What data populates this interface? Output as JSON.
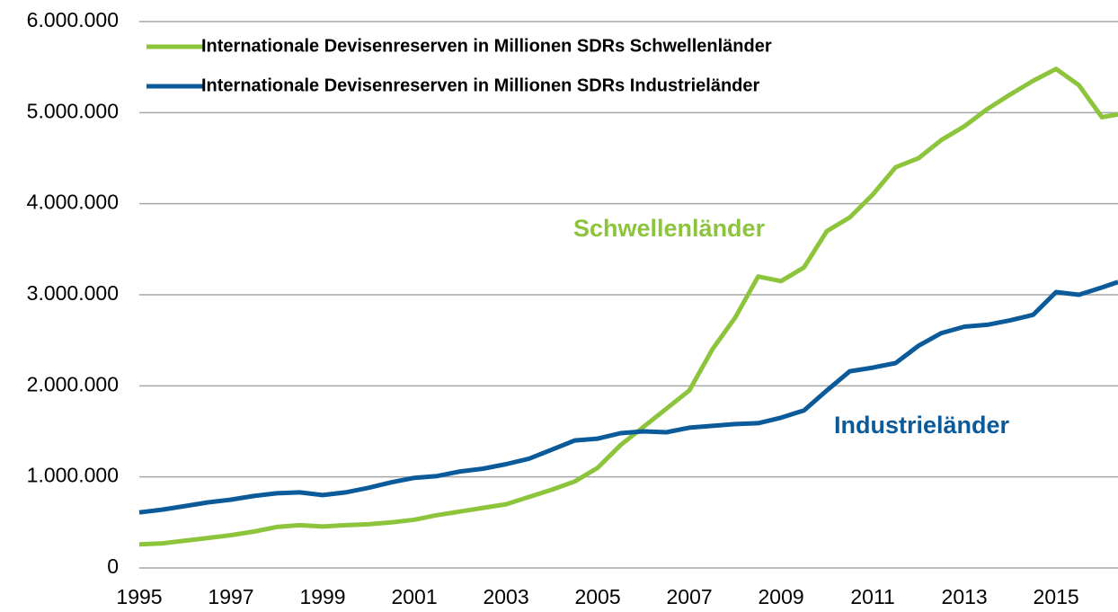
{
  "chart_data": {
    "type": "line",
    "x": [
      1995,
      1995.5,
      1996,
      1996.5,
      1997,
      1997.5,
      1998,
      1998.5,
      1999,
      1999.5,
      2000,
      2000.5,
      2001,
      2001.5,
      2002,
      2002.5,
      2003,
      2003.5,
      2004,
      2004.5,
      2005,
      2005.5,
      2006,
      2006.5,
      2007,
      2007.5,
      2008,
      2008.5,
      2009,
      2009.5,
      2010,
      2010.5,
      2011,
      2011.5,
      2012,
      2012.5,
      2013,
      2013.5,
      2014,
      2014.5,
      2015,
      2015.5,
      2016,
      2016.35
    ],
    "series": [
      {
        "name": "Internationale Devisenreserven in Millionen SDRs Schwellenländer",
        "color": "#8cc43c",
        "values": [
          260000,
          270000,
          300000,
          330000,
          360000,
          400000,
          450000,
          470000,
          455000,
          470000,
          480000,
          500000,
          530000,
          580000,
          620000,
          660000,
          700000,
          780000,
          860000,
          950000,
          1100000,
          1350000,
          1550000,
          1750000,
          1950000,
          2400000,
          2750000,
          3200000,
          3150000,
          3300000,
          3700000,
          3850000,
          4100000,
          4400000,
          4500000,
          4700000,
          4850000,
          5040000,
          5200000,
          5350000,
          5480000,
          5300000,
          4950000,
          4980000
        ]
      },
      {
        "name": "Internationale Devisenreserven in Millionen SDRs Industrieländer",
        "color": "#0b5a9a",
        "values": [
          610000,
          640000,
          680000,
          720000,
          750000,
          790000,
          820000,
          830000,
          800000,
          830000,
          880000,
          940000,
          990000,
          1010000,
          1060000,
          1090000,
          1140000,
          1200000,
          1300000,
          1400000,
          1420000,
          1480000,
          1500000,
          1490000,
          1540000,
          1560000,
          1580000,
          1590000,
          1650000,
          1730000,
          1950000,
          2160000,
          2200000,
          2250000,
          2440000,
          2580000,
          2650000,
          2670000,
          2720000,
          2780000,
          3030000,
          3000000,
          3080000,
          3140000
        ]
      }
    ],
    "annotations": [
      {
        "text": "Schwellenländer",
        "color": "#8cc43c"
      },
      {
        "text": "Industrieländer",
        "color": "#0b5a9a"
      }
    ],
    "xlim": [
      1995,
      2016.35
    ],
    "xticks": [
      1995,
      1997,
      1999,
      2001,
      2003,
      2005,
      2007,
      2009,
      2011,
      2013,
      2015
    ],
    "ylim": [
      0,
      6000000
    ],
    "yticks": [
      0,
      {
        "value": 1000000,
        "label": "1.000.000"
      },
      {
        "value": 2000000,
        "label": "2.000.000"
      },
      {
        "value": 3000000,
        "label": "3.000.000"
      },
      {
        "value": 4000000,
        "label": "4.000.000"
      },
      {
        "value": 5000000,
        "label": "5.000.000"
      },
      {
        "value": 6000000,
        "label": "6.000.000"
      }
    ],
    "grid": true,
    "legend": "top-left"
  }
}
